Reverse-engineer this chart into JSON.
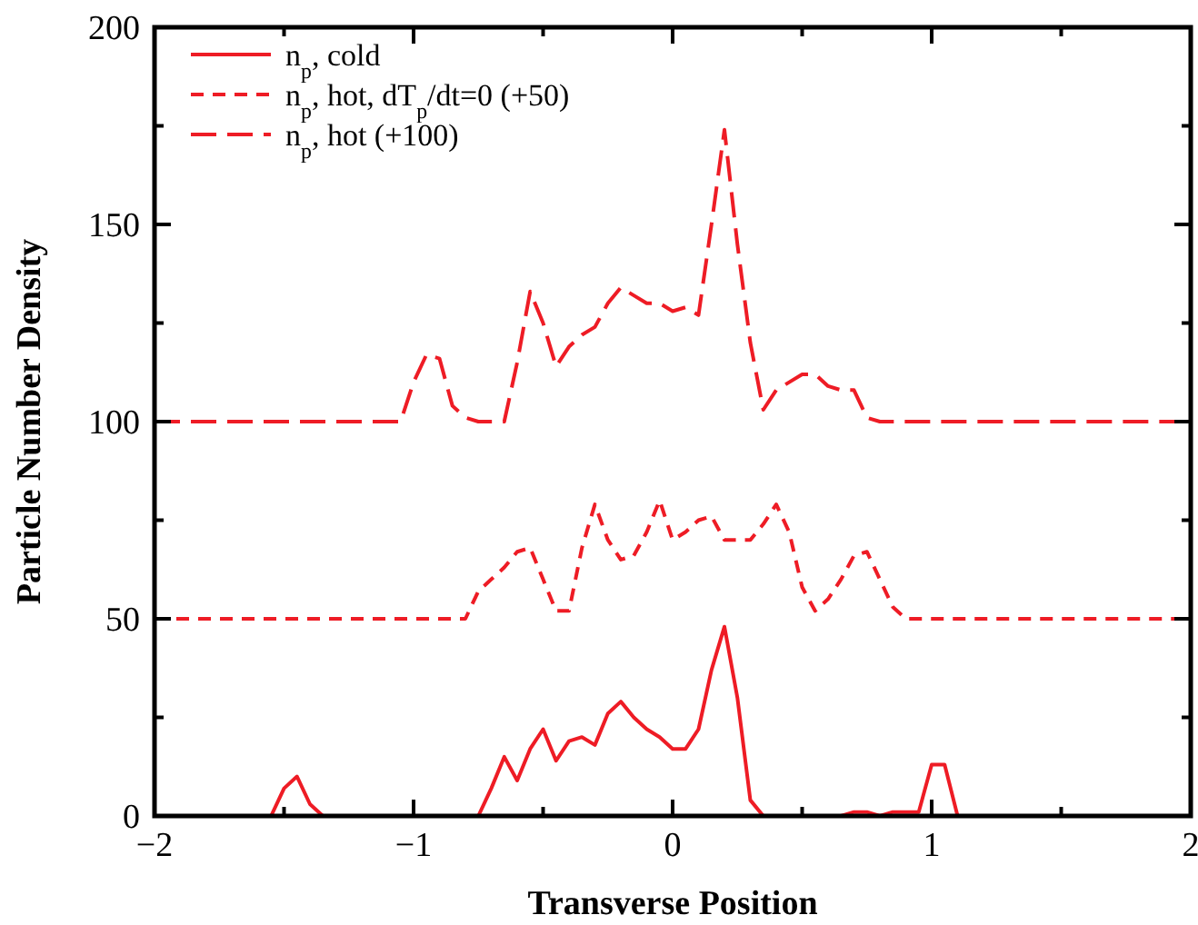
{
  "chart_data": {
    "type": "line",
    "xlabel": "Transverse Position",
    "ylabel": "Particle Number Density",
    "xlim": [
      -2,
      2
    ],
    "ylim": [
      0,
      200
    ],
    "xticks": [
      -2,
      {
        "value": -1.5,
        "label": null
      },
      -1,
      {
        "value": -0.5,
        "label": null
      },
      0,
      {
        "value": 0.5,
        "label": null
      },
      1,
      {
        "value": 1.5,
        "label": null
      },
      2
    ],
    "yticks": [
      0,
      {
        "value": 25,
        "label": null
      },
      50,
      {
        "value": 75,
        "label": null
      },
      100,
      {
        "value": 125,
        "label": null
      },
      150,
      {
        "value": 175,
        "label": null
      },
      200
    ],
    "grid": false,
    "legend": "top left",
    "series": [
      {
        "name": "n$_{p}$, cold",
        "color": "#ee1c25",
        "line_style": "solid",
        "x": [
          -1.55,
          -1.5,
          -1.45,
          -1.4,
          -1.35,
          -0.75,
          -0.7,
          -0.65,
          -0.6,
          -0.55,
          -0.5,
          -0.45,
          -0.4,
          -0.35,
          -0.3,
          -0.25,
          -0.2,
          -0.15,
          -0.1,
          -0.05,
          0,
          0.05,
          0.1,
          0.15,
          0.2,
          0.25,
          0.3,
          0.35,
          0.65,
          0.7,
          0.75,
          0.8,
          0.85,
          0.9,
          0.95,
          1.0,
          1.05,
          1.1
        ],
        "values": [
          0,
          7,
          10,
          3,
          0,
          0,
          7,
          15,
          9,
          17,
          22,
          14,
          19,
          20,
          18,
          26,
          29,
          25,
          22,
          20,
          17,
          17,
          22,
          37,
          48,
          30,
          4,
          0,
          0,
          1,
          1,
          0,
          1,
          1,
          1,
          13,
          13,
          0
        ]
      },
      {
        "name": "n$_{p}$, hot, dT$_{p}$/dt=0 (+50)",
        "color": "#ee1c25",
        "line_style": "dashed",
        "x": [
          -2,
          -0.8,
          -0.75,
          -0.7,
          -0.65,
          -0.6,
          -0.55,
          -0.5,
          -0.45,
          -0.4,
          -0.35,
          -0.3,
          -0.25,
          -0.2,
          -0.15,
          -0.1,
          -0.05,
          0,
          0.05,
          0.1,
          0.15,
          0.2,
          0.25,
          0.3,
          0.35,
          0.4,
          0.45,
          0.5,
          0.55,
          0.6,
          0.65,
          0.7,
          0.75,
          0.8,
          0.85,
          0.9,
          2
        ],
        "values": [
          50,
          50,
          57,
          60,
          63,
          67,
          68,
          60,
          52,
          52,
          68,
          79,
          70,
          65,
          66,
          72,
          80,
          70,
          72,
          75,
          76,
          70,
          70,
          70,
          74,
          79,
          72,
          58,
          52,
          55,
          60,
          66,
          67,
          60,
          53,
          50,
          50
        ]
      },
      {
        "name": "n$_{p}$, hot (+100)",
        "color": "#ee1c25",
        "line_style": "longdash",
        "x": [
          -2,
          -1.05,
          -1.0,
          -0.95,
          -0.9,
          -0.85,
          -0.8,
          -0.75,
          -0.65,
          -0.6,
          -0.55,
          -0.5,
          -0.45,
          -0.4,
          -0.35,
          -0.3,
          -0.25,
          -0.2,
          -0.15,
          -0.1,
          -0.05,
          0,
          0.05,
          0.1,
          0.15,
          0.2,
          0.25,
          0.3,
          0.35,
          0.4,
          0.45,
          0.5,
          0.55,
          0.6,
          0.65,
          0.7,
          0.75,
          0.8,
          2
        ],
        "values": [
          100,
          100,
          110,
          117,
          116,
          104,
          101,
          100,
          100,
          115,
          133,
          125,
          114,
          119,
          122,
          124,
          130,
          134,
          132,
          130,
          130,
          128,
          129,
          127,
          150,
          174,
          145,
          120,
          103,
          108,
          110,
          112,
          112,
          109,
          108,
          108,
          101,
          100,
          100
        ]
      }
    ]
  }
}
